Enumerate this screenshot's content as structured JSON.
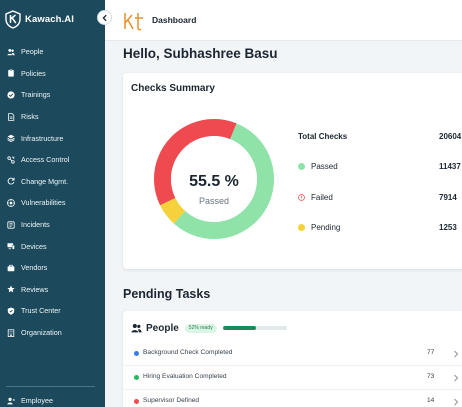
{
  "brand": {
    "name": "Kawach.AI"
  },
  "topbar": {
    "title": "Dashboard"
  },
  "sidebar": {
    "items": [
      {
        "label": "People",
        "icon": "people-icon"
      },
      {
        "label": "Policies",
        "icon": "clipboard-icon"
      },
      {
        "label": "Trainings",
        "icon": "check-badge-icon"
      },
      {
        "label": "Risks",
        "icon": "document-icon"
      },
      {
        "label": "Infrastructure",
        "icon": "layers-icon"
      },
      {
        "label": "Access Control",
        "icon": "key-icon"
      },
      {
        "label": "Change Mgmt.",
        "icon": "refresh-icon"
      },
      {
        "label": "Vulnerabilities",
        "icon": "bug-icon"
      },
      {
        "label": "Incidents",
        "icon": "incident-icon"
      },
      {
        "label": "Devices",
        "icon": "devices-icon"
      },
      {
        "label": "Vendors",
        "icon": "briefcase-icon"
      },
      {
        "label": "Reviews",
        "icon": "star-icon"
      },
      {
        "label": "Trust Center",
        "icon": "shield-icon"
      },
      {
        "label": "Organization",
        "icon": "building-icon"
      }
    ],
    "employee_label": "Employee"
  },
  "greeting": "Hello, Subhashree Basu",
  "summary": {
    "title": "Checks Summary",
    "percent_text": "55.5 %",
    "percent_sub": "Passed",
    "total_label": "Total Checks",
    "total_value": "20604",
    "rows": [
      {
        "label": "Passed",
        "value": "11437",
        "color": "#8fe3a9",
        "icon": "passed-dot"
      },
      {
        "label": "Failed",
        "value": "7914",
        "color": "#ef4a4f",
        "icon": "failed-info-icon"
      },
      {
        "label": "Pending",
        "value": "1253",
        "color": "#f5d23c",
        "icon": "pending-dot"
      }
    ]
  },
  "pending": {
    "title": "Pending Tasks",
    "group_label": "People",
    "ready_badge": "52% ready",
    "ready_fraction": 0.52,
    "tasks": [
      {
        "label": "Background Check Completed",
        "count": "77",
        "color": "#3b7be8"
      },
      {
        "label": "Hiring Evaluation Completed",
        "count": "73",
        "color": "#27b862"
      },
      {
        "label": "Supervisor Defined",
        "count": "14",
        "color": "#ef4a4f"
      }
    ]
  },
  "colors": {
    "sidebar": "#1c4a5c",
    "passed": "#8fe3a9",
    "failed": "#ef4a4f",
    "pending": "#f5d23c",
    "progress": "#1b8a5a"
  }
}
